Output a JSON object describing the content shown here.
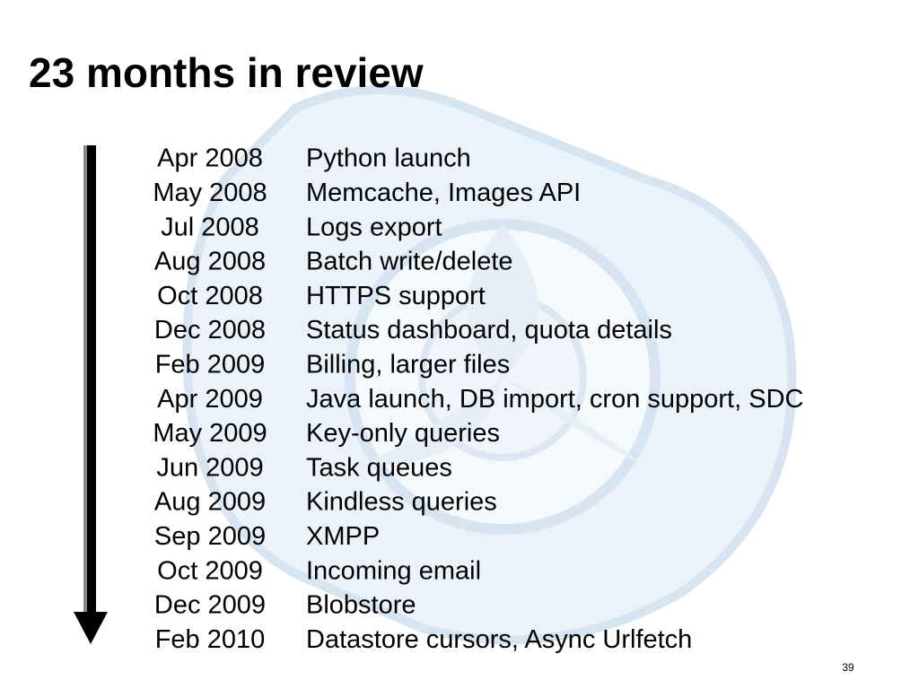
{
  "title": "23 months in review",
  "timeline": [
    {
      "date": "Apr 2008",
      "event": "Python launch"
    },
    {
      "date": "May 2008",
      "event": "Memcache, Images API"
    },
    {
      "date": "Jul 2008",
      "event": "Logs export"
    },
    {
      "date": "Aug 2008",
      "event": "Batch write/delete"
    },
    {
      "date": "Oct 2008",
      "event": "HTTPS support"
    },
    {
      "date": "Dec 2008",
      "event": "Status dashboard, quota details"
    },
    {
      "date": "Feb 2009",
      "event": "Billing, larger files"
    },
    {
      "date": "Apr 2009",
      "event": "Java launch, DB import, cron support, SDC"
    },
    {
      "date": "May 2009",
      "event": "Key-only queries"
    },
    {
      "date": "Jun 2009",
      "event": "Task queues"
    },
    {
      "date": "Aug 2009",
      "event": "Kindless queries"
    },
    {
      "date": "Sep 2009",
      "event": "XMPP"
    },
    {
      "date": "Oct 2009",
      "event": "Incoming email"
    },
    {
      "date": "Dec 2009",
      "event": "Blobstore"
    },
    {
      "date": "Feb 2010",
      "event": "Datastore cursors, Async Urlfetch"
    }
  ],
  "page_number": "39"
}
